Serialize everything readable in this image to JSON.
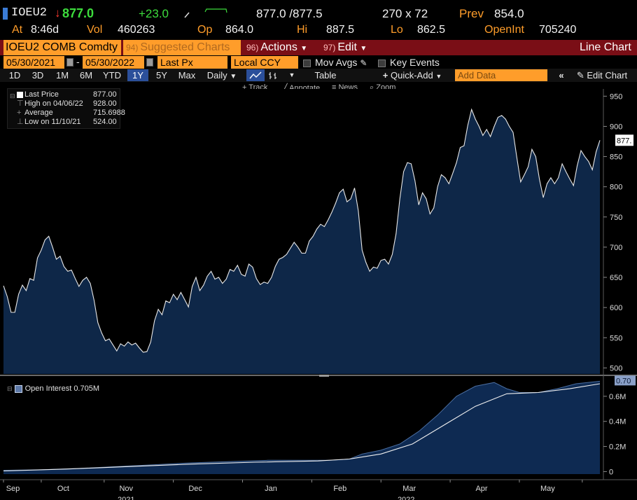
{
  "quote": {
    "ticker": "IOEU2",
    "arrow": "↓",
    "last": "877.0",
    "change": "+23.0",
    "bid_ask": "877.0 /877.5",
    "size": "270 x 72",
    "prev_label": "Prev",
    "prev": "854.0",
    "at_label": "At",
    "time": "8:46d",
    "vol_label": "Vol",
    "vol": "460263",
    "op_label": "Op",
    "op": "864.0",
    "hi_label": "Hi",
    "hi": "887.5",
    "lo_label": "Lo",
    "lo": "862.5",
    "oi_label": "OpenInt",
    "oi": "705240"
  },
  "menubar": {
    "security": "IOEU2 COMB Comdty",
    "suggested_num": "94)",
    "suggested": "Suggested Charts",
    "actions_num": "96)",
    "actions": "Actions",
    "edit_num": "97)",
    "edit": "Edit",
    "chart_type": "Line Chart"
  },
  "datebar": {
    "start": "05/30/2021",
    "end": "05/30/2022",
    "field": "Last Px",
    "currency": "Local CCY",
    "mov_avgs": "Mov Avgs",
    "key_events": "Key Events"
  },
  "rangebar": {
    "ranges": [
      "1D",
      "3D",
      "1M",
      "6M",
      "YTD",
      "1Y",
      "5Y",
      "Max"
    ],
    "active": "1Y",
    "period": "Daily",
    "table": "Table",
    "quick_add": "Quick-Add",
    "add_data_placeholder": "Add Data",
    "edit_chart": "Edit Chart"
  },
  "toolbar": {
    "track": "Track",
    "annotate": "Annotate",
    "news": "News",
    "zoom": "Zoom"
  },
  "legend": {
    "last_price_label": "Last Price",
    "last_price": "877.00",
    "high_label": "High on 04/06/22",
    "high": "928.00",
    "average_label": "Average",
    "average": "715.6988",
    "low_label": "Low on 11/10/21",
    "low": "524.00"
  },
  "oi_legend": "Open Interest 0.705M",
  "colors": {
    "background": "#000000",
    "area_fill": "#0e2748",
    "line": "#e8e8e8",
    "accent_orange": "#ff9d2a",
    "menubar_red": "#7a0e16",
    "up_green": "#3ddc3d",
    "down_red": "#ff3b30"
  },
  "chart_data": [
    {
      "type": "area",
      "title": "",
      "series": [
        {
          "name": "Last Price",
          "values": [
            [
              0.0,
              636
            ],
            [
              0.6,
              618
            ],
            [
              1.2,
              592
            ],
            [
              1.8,
              592
            ],
            [
              2.4,
              622
            ],
            [
              3.0,
              637
            ],
            [
              3.6,
              628
            ],
            [
              4.2,
              648
            ],
            [
              4.8,
              645
            ],
            [
              5.4,
              682
            ],
            [
              6.0,
              695
            ],
            [
              6.6,
              712
            ],
            [
              7.2,
              718
            ],
            [
              7.8,
              700
            ],
            [
              8.4,
              680
            ],
            [
              9.0,
              685
            ],
            [
              9.6,
              668
            ],
            [
              10.2,
              660
            ],
            [
              10.8,
              662
            ],
            [
              11.4,
              648
            ],
            [
              12.0,
              635
            ],
            [
              12.6,
              645
            ],
            [
              13.2,
              650
            ],
            [
              13.8,
              640
            ],
            [
              14.4,
              612
            ],
            [
              15.0,
              575
            ],
            [
              15.6,
              558
            ],
            [
              16.2,
              545
            ],
            [
              16.8,
              548
            ],
            [
              17.4,
              538
            ],
            [
              18.0,
              528
            ],
            [
              18.6,
              540
            ],
            [
              19.2,
              536
            ],
            [
              19.8,
              543
            ],
            [
              20.4,
              538
            ],
            [
              21.0,
              541
            ],
            [
              21.6,
              533
            ],
            [
              22.2,
              526
            ],
            [
              22.8,
              527
            ],
            [
              23.4,
              543
            ],
            [
              24.0,
              578
            ],
            [
              24.6,
              597
            ],
            [
              25.2,
              588
            ],
            [
              25.8,
              611
            ],
            [
              26.4,
              608
            ],
            [
              27.0,
              622
            ],
            [
              27.6,
              613
            ],
            [
              28.2,
              625
            ],
            [
              28.8,
              613
            ],
            [
              29.4,
              601
            ],
            [
              30.0,
              635
            ],
            [
              30.6,
              650
            ],
            [
              31.2,
              628
            ],
            [
              31.8,
              637
            ],
            [
              32.4,
              652
            ],
            [
              33.0,
              660
            ],
            [
              33.6,
              647
            ],
            [
              34.2,
              650
            ],
            [
              34.8,
              640
            ],
            [
              35.4,
              647
            ],
            [
              36.0,
              663
            ],
            [
              36.6,
              660
            ],
            [
              37.2,
              670
            ],
            [
              37.8,
              655
            ],
            [
              38.4,
              652
            ],
            [
              39.0,
              672
            ],
            [
              39.6,
              667
            ],
            [
              40.2,
              648
            ],
            [
              40.8,
              638
            ],
            [
              41.4,
              642
            ],
            [
              42.0,
              640
            ],
            [
              42.6,
              650
            ],
            [
              43.2,
              668
            ],
            [
              43.8,
              680
            ],
            [
              44.4,
              683
            ],
            [
              45.0,
              688
            ],
            [
              45.6,
              698
            ],
            [
              46.2,
              708
            ],
            [
              46.8,
              700
            ],
            [
              47.4,
              690
            ],
            [
              48.0,
              690
            ],
            [
              48.6,
              710
            ],
            [
              49.2,
              718
            ],
            [
              49.8,
              730
            ],
            [
              50.4,
              738
            ],
            [
              51.0,
              734
            ],
            [
              51.6,
              745
            ],
            [
              52.2,
              758
            ],
            [
              52.8,
              773
            ],
            [
              53.4,
              790
            ],
            [
              54.0,
              796
            ],
            [
              54.6,
              775
            ],
            [
              55.2,
              780
            ],
            [
              55.8,
              798
            ],
            [
              56.4,
              760
            ],
            [
              57.0,
              695
            ],
            [
              57.6,
              675
            ],
            [
              58.2,
              660
            ],
            [
              58.8,
              667
            ],
            [
              59.4,
              665
            ],
            [
              60.0,
              678
            ],
            [
              60.6,
              680
            ],
            [
              61.2,
              672
            ],
            [
              61.8,
              688
            ],
            [
              62.4,
              722
            ],
            [
              63.0,
              780
            ],
            [
              63.6,
              825
            ],
            [
              64.2,
              840
            ],
            [
              64.8,
              838
            ],
            [
              65.4,
              810
            ],
            [
              66.0,
              770
            ],
            [
              66.6,
              790
            ],
            [
              67.2,
              780
            ],
            [
              67.8,
              755
            ],
            [
              68.4,
              765
            ],
            [
              69.0,
              800
            ],
            [
              69.6,
              820
            ],
            [
              70.2,
              815
            ],
            [
              70.8,
              805
            ],
            [
              71.4,
              822
            ],
            [
              72.0,
              840
            ],
            [
              72.6,
              865
            ],
            [
              73.2,
              868
            ],
            [
              73.8,
              902
            ],
            [
              74.4,
              928
            ],
            [
              75.0,
              912
            ],
            [
              75.6,
              900
            ],
            [
              76.2,
              885
            ],
            [
              76.8,
              895
            ],
            [
              77.4,
              883
            ],
            [
              78.0,
              900
            ],
            [
              78.6,
              915
            ],
            [
              79.2,
              918
            ],
            [
              79.8,
              912
            ],
            [
              80.4,
              900
            ],
            [
              81.0,
              890
            ],
            [
              81.6,
              848
            ],
            [
              82.2,
              808
            ],
            [
              82.8,
              820
            ],
            [
              83.4,
              833
            ],
            [
              84.0,
              862
            ],
            [
              84.6,
              850
            ],
            [
              85.2,
              812
            ],
            [
              85.8,
              782
            ],
            [
              86.4,
              805
            ],
            [
              87.0,
              815
            ],
            [
              87.6,
              805
            ],
            [
              88.2,
              815
            ],
            [
              88.8,
              838
            ],
            [
              89.4,
              825
            ],
            [
              90.0,
              813
            ],
            [
              90.6,
              802
            ],
            [
              91.2,
              835
            ],
            [
              91.8,
              860
            ],
            [
              92.4,
              850
            ],
            [
              93.0,
              842
            ],
            [
              93.6,
              828
            ],
            [
              94.2,
              858
            ],
            [
              94.8,
              877
            ]
          ]
        }
      ],
      "x_ticks": [
        "Sep",
        "Oct",
        "Nov",
        "Dec",
        "Jan",
        "Feb",
        "Mar",
        "Apr",
        "May"
      ],
      "x_years": [
        "2021",
        "2022"
      ],
      "y_ticks": [
        500,
        550,
        600,
        650,
        700,
        750,
        800,
        850,
        900,
        950
      ],
      "ylim": [
        490,
        962
      ],
      "last_label": "877.",
      "grid": false
    },
    {
      "type": "area",
      "title": "",
      "series": [
        {
          "name": "Open Interest",
          "values": [
            [
              0,
              0.01
            ],
            [
              6,
              0.015
            ],
            [
              12,
              0.025
            ],
            [
              18,
              0.04
            ],
            [
              24,
              0.055
            ],
            [
              30,
              0.07
            ],
            [
              36,
              0.08
            ],
            [
              42,
              0.09
            ],
            [
              48,
              0.09
            ],
            [
              52,
              0.09
            ],
            [
              55,
              0.1
            ],
            [
              57,
              0.14
            ],
            [
              60,
              0.17
            ],
            [
              63,
              0.22
            ],
            [
              66,
              0.32
            ],
            [
              69,
              0.45
            ],
            [
              72,
              0.6
            ],
            [
              75,
              0.68
            ],
            [
              78,
              0.71
            ],
            [
              80,
              0.66
            ],
            [
              82,
              0.63
            ],
            [
              85,
              0.63
            ],
            [
              88,
              0.66
            ],
            [
              91,
              0.7
            ],
            [
              94.8,
              0.72
            ]
          ]
        },
        {
          "name": "",
          "values": [
            [
              0,
              0.005
            ],
            [
              10,
              0.02
            ],
            [
              20,
              0.04
            ],
            [
              30,
              0.06
            ],
            [
              40,
              0.075
            ],
            [
              50,
              0.085
            ],
            [
              55,
              0.1
            ],
            [
              60,
              0.14
            ],
            [
              65,
              0.22
            ],
            [
              70,
              0.37
            ],
            [
              75,
              0.52
            ],
            [
              80,
              0.62
            ],
            [
              85,
              0.63
            ],
            [
              90,
              0.66
            ],
            [
              94.8,
              0.7
            ]
          ]
        }
      ],
      "y_ticks": [
        "0",
        "0.2M",
        "0.4M",
        "0.6M"
      ],
      "ylim": [
        -0.02,
        0.75
      ],
      "last_label": "0.70",
      "grid": false
    }
  ]
}
